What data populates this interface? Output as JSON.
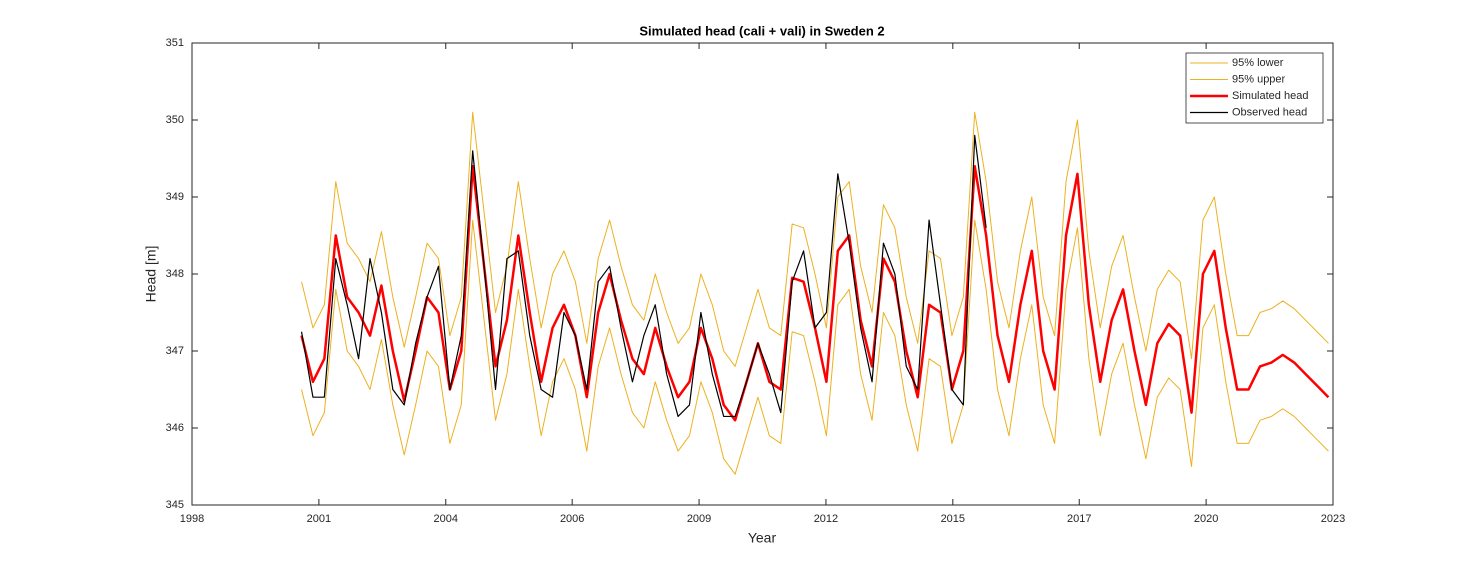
{
  "chart_data": {
    "type": "line",
    "title": "Simulated head (cali + vali) in Sweden 2",
    "x_label": "Year",
    "y_label": "Head [m]",
    "xlim": [
      1998,
      2023
    ],
    "xticks": [
      {
        "value": 1998,
        "label": "1998"
      },
      {
        "value": 2000.78,
        "label": "2001"
      },
      {
        "value": 2003.56,
        "label": "2004"
      },
      {
        "value": 2006.33,
        "label": "2006"
      },
      {
        "value": 2009.11,
        "label": "2009"
      },
      {
        "value": 2011.89,
        "label": "2012"
      },
      {
        "value": 2014.67,
        "label": "2015"
      },
      {
        "value": 2017.44,
        "label": "2017"
      },
      {
        "value": 2020.22,
        "label": "2020"
      },
      {
        "value": 2023,
        "label": "2023"
      }
    ],
    "ylim": [
      345,
      351
    ],
    "yticks": [
      345,
      346,
      347,
      348,
      349,
      350,
      351
    ],
    "legend": "top-right",
    "x": [
      2000.4,
      2000.65,
      2000.9,
      2001.15,
      2001.4,
      2001.65,
      2001.9,
      2002.15,
      2002.4,
      2002.65,
      2002.9,
      2003.15,
      2003.4,
      2003.65,
      2003.9,
      2004.15,
      2004.4,
      2004.65,
      2004.9,
      2005.15,
      2005.4,
      2005.65,
      2005.9,
      2006.15,
      2006.4,
      2006.65,
      2006.9,
      2007.15,
      2007.4,
      2007.65,
      2007.9,
      2008.15,
      2008.4,
      2008.65,
      2008.9,
      2009.15,
      2009.4,
      2009.65,
      2009.9,
      2010.15,
      2010.4,
      2010.65,
      2010.9,
      2011.15,
      2011.4,
      2011.65,
      2011.9,
      2012.15,
      2012.4,
      2012.65,
      2012.9,
      2013.15,
      2013.4,
      2013.65,
      2013.9,
      2014.15,
      2014.4,
      2014.65,
      2014.9,
      2015.15,
      2015.4,
      2015.65,
      2015.9,
      2016.15,
      2016.4,
      2016.65,
      2016.9,
      2017.15,
      2017.4,
      2017.65,
      2017.9,
      2018.15,
      2018.4,
      2018.65,
      2018.9,
      2019.15,
      2019.4,
      2019.65,
      2019.9,
      2020.15,
      2020.4,
      2020.65,
      2020.9,
      2021.15,
      2021.4,
      2021.65,
      2021.9,
      2022.15,
      2022.4,
      2022.65,
      2022.9
    ],
    "series": [
      {
        "name": "95% lower",
        "color": "#EDB120",
        "width": 1,
        "values": [
          346.5,
          345.9,
          346.2,
          347.8,
          347.0,
          346.8,
          346.5,
          347.15,
          346.3,
          345.65,
          346.3,
          347.0,
          346.8,
          345.8,
          346.3,
          348.7,
          347.4,
          346.1,
          346.7,
          347.8,
          346.8,
          345.9,
          346.6,
          346.9,
          346.5,
          345.7,
          346.8,
          347.3,
          346.7,
          346.2,
          346.0,
          346.6,
          346.1,
          345.7,
          345.9,
          346.6,
          346.2,
          345.6,
          345.4,
          345.9,
          346.4,
          345.9,
          345.8,
          347.25,
          347.2,
          346.6,
          345.9,
          347.6,
          347.8,
          346.7,
          346.1,
          347.5,
          347.2,
          346.3,
          345.7,
          346.9,
          346.8,
          345.8,
          346.3,
          348.7,
          347.8,
          346.5,
          345.9,
          346.9,
          347.6,
          346.3,
          345.8,
          347.8,
          348.6,
          346.9,
          345.9,
          346.7,
          347.1,
          346.3,
          345.6,
          346.4,
          346.65,
          346.5,
          345.5,
          347.3,
          347.6,
          346.6,
          345.8,
          345.8,
          346.1,
          346.15,
          346.25,
          346.15,
          346.0,
          345.85,
          345.7
        ]
      },
      {
        "name": "95% upper",
        "color": "#EDB120",
        "width": 1,
        "values": [
          347.9,
          347.3,
          347.6,
          349.2,
          348.4,
          348.2,
          347.9,
          348.55,
          347.7,
          347.05,
          347.7,
          348.4,
          348.2,
          347.2,
          347.7,
          350.1,
          348.8,
          347.5,
          348.1,
          349.2,
          348.2,
          347.3,
          348.0,
          348.3,
          347.9,
          347.1,
          348.2,
          348.7,
          348.1,
          347.6,
          347.4,
          348.0,
          347.5,
          347.1,
          347.3,
          348.0,
          347.6,
          347.0,
          346.8,
          347.3,
          347.8,
          347.3,
          347.2,
          348.65,
          348.6,
          348.0,
          347.3,
          349.0,
          349.2,
          348.1,
          347.5,
          348.9,
          348.6,
          347.7,
          347.1,
          348.3,
          348.2,
          347.2,
          347.7,
          350.1,
          349.2,
          347.9,
          347.3,
          348.3,
          349.0,
          347.7,
          347.2,
          349.2,
          350.0,
          348.3,
          347.3,
          348.1,
          348.5,
          347.7,
          347.0,
          347.8,
          348.05,
          347.9,
          346.9,
          348.7,
          349.0,
          348.0,
          347.2,
          347.2,
          347.5,
          347.55,
          347.65,
          347.55,
          347.4,
          347.25,
          347.1
        ]
      },
      {
        "name": "Simulated head",
        "color": "#FF0000",
        "width": 2.5,
        "values": [
          347.2,
          346.6,
          346.9,
          348.5,
          347.7,
          347.5,
          347.2,
          347.85,
          347.0,
          346.35,
          347.0,
          347.7,
          347.5,
          346.5,
          347.0,
          349.4,
          348.1,
          346.8,
          347.4,
          348.5,
          347.5,
          346.6,
          347.3,
          347.6,
          347.2,
          346.4,
          347.5,
          348.0,
          347.4,
          346.9,
          346.7,
          347.3,
          346.8,
          346.4,
          346.6,
          347.3,
          346.9,
          346.3,
          346.1,
          346.6,
          347.1,
          346.6,
          346.5,
          347.95,
          347.9,
          347.3,
          346.6,
          348.3,
          348.5,
          347.4,
          346.8,
          348.2,
          347.9,
          347.0,
          346.4,
          347.6,
          347.5,
          346.5,
          347.0,
          349.4,
          348.5,
          347.2,
          346.6,
          347.6,
          348.3,
          347.0,
          346.5,
          348.5,
          349.3,
          347.6,
          346.6,
          347.4,
          347.8,
          347.0,
          346.3,
          347.1,
          347.35,
          347.2,
          346.2,
          348.0,
          348.3,
          347.3,
          346.5,
          346.5,
          346.8,
          346.85,
          346.95,
          346.85,
          346.7,
          346.55,
          346.4
        ]
      },
      {
        "name": "Observed head",
        "color": "#000000",
        "width": 1.2,
        "values": [
          347.25,
          346.4,
          346.4,
          348.2,
          347.6,
          346.9,
          348.2,
          347.5,
          346.5,
          346.3,
          347.1,
          347.7,
          348.1,
          346.5,
          347.2,
          349.6,
          348.1,
          346.5,
          348.2,
          348.3,
          347.2,
          346.5,
          346.4,
          347.5,
          347.2,
          346.5,
          347.9,
          348.1,
          347.3,
          346.6,
          347.2,
          347.6,
          346.7,
          346.15,
          346.3,
          347.5,
          346.7,
          346.15,
          346.15,
          346.6,
          347.1,
          346.7,
          346.2,
          347.9,
          348.3,
          347.3,
          347.5,
          349.3,
          348.4,
          347.3,
          346.6,
          348.4,
          348.0,
          346.8,
          346.5,
          348.7,
          347.6,
          346.5,
          346.3,
          349.8,
          348.6,
          null,
          null,
          null,
          null,
          null,
          null,
          null,
          null,
          null,
          null,
          null,
          null,
          null,
          null,
          null,
          null,
          null,
          null,
          null,
          null,
          null,
          null,
          null,
          null,
          null,
          null,
          null,
          null,
          null,
          null
        ]
      }
    ]
  }
}
